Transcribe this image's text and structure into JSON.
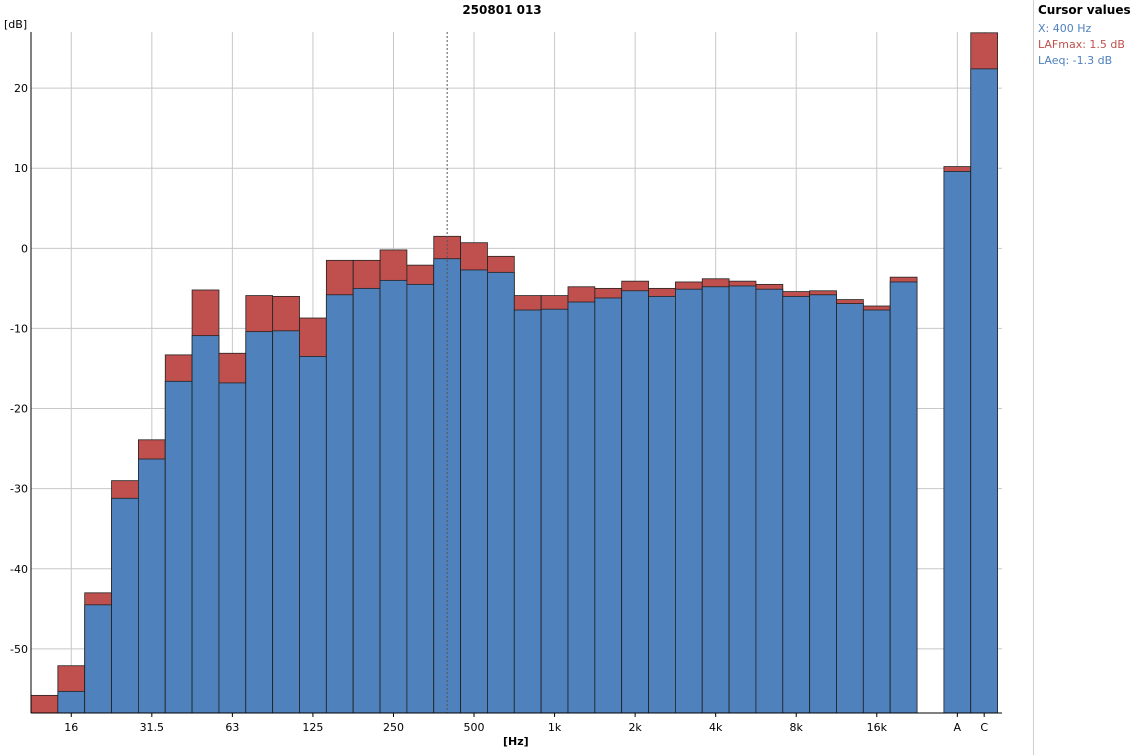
{
  "chart_data": {
    "type": "bar",
    "title": "250801 013",
    "xlabel": "[Hz]",
    "ylabel": "[dB]",
    "ylim": [
      -58,
      27
    ],
    "yticks": [
      -50,
      -40,
      -30,
      -20,
      -10,
      0,
      10,
      20
    ],
    "bands": [
      "12.5",
      "16",
      "20",
      "25",
      "31.5",
      "40",
      "50",
      "63",
      "80",
      "100",
      "125",
      "160",
      "200",
      "250",
      "315",
      "400",
      "500",
      "630",
      "800",
      "1k",
      "1.25k",
      "1.6k",
      "2k",
      "2.5k",
      "3.15k",
      "4k",
      "5k",
      "6.3k",
      "8k",
      "10k",
      "12.5k",
      "16k",
      "20k"
    ],
    "tick_labels": {
      "16": "16",
      "31.5": "31.5",
      "63": "63",
      "125": "125",
      "250": "250",
      "500": "500",
      "1k": "1k",
      "2k": "2k",
      "4k": "4k",
      "8k": "8k",
      "16k": "16k"
    },
    "summary_bands": [
      "A",
      "C"
    ],
    "series": [
      {
        "name": "LAFmax",
        "color": "#c0504d",
        "values": [
          -55.8,
          -52.1,
          -43.0,
          -29.0,
          -23.9,
          -13.3,
          -5.2,
          -13.1,
          -5.9,
          -6.0,
          -8.7,
          -1.5,
          -1.5,
          -0.2,
          -2.1,
          1.5,
          0.7,
          -1.0,
          -5.9,
          -5.9,
          -4.8,
          -5.0,
          -4.1,
          -5.0,
          -4.2,
          -3.8,
          -4.1,
          -4.5,
          -5.4,
          -5.3,
          -6.4,
          -7.2,
          -3.6
        ],
        "summary_values": [
          10.2,
          26.9
        ]
      },
      {
        "name": "LAeq",
        "color": "#4f81bd",
        "values": [
          -59.0,
          -55.3,
          -44.5,
          -31.2,
          -26.3,
          -16.6,
          -10.9,
          -16.8,
          -10.4,
          -10.3,
          -13.5,
          -5.8,
          -5.0,
          -4.0,
          -4.5,
          -1.3,
          -2.7,
          -3.0,
          -7.7,
          -7.6,
          -6.7,
          -6.2,
          -5.3,
          -6.0,
          -5.1,
          -4.8,
          -4.7,
          -5.1,
          -6.0,
          -5.8,
          -6.9,
          -7.7,
          -4.2
        ],
        "summary_values": [
          9.6,
          22.4
        ]
      }
    ],
    "cursor_x": "400",
    "grid": true
  },
  "cursor_panel": {
    "title": "Cursor values",
    "x": "X: 400 Hz",
    "lafmax": "LAFmax: 1.5 dB",
    "laeq": "LAeq: -1.3 dB",
    "x_color": "#4f81bd",
    "lafmax_color": "#c0504d",
    "laeq_color": "#4f81bd"
  }
}
